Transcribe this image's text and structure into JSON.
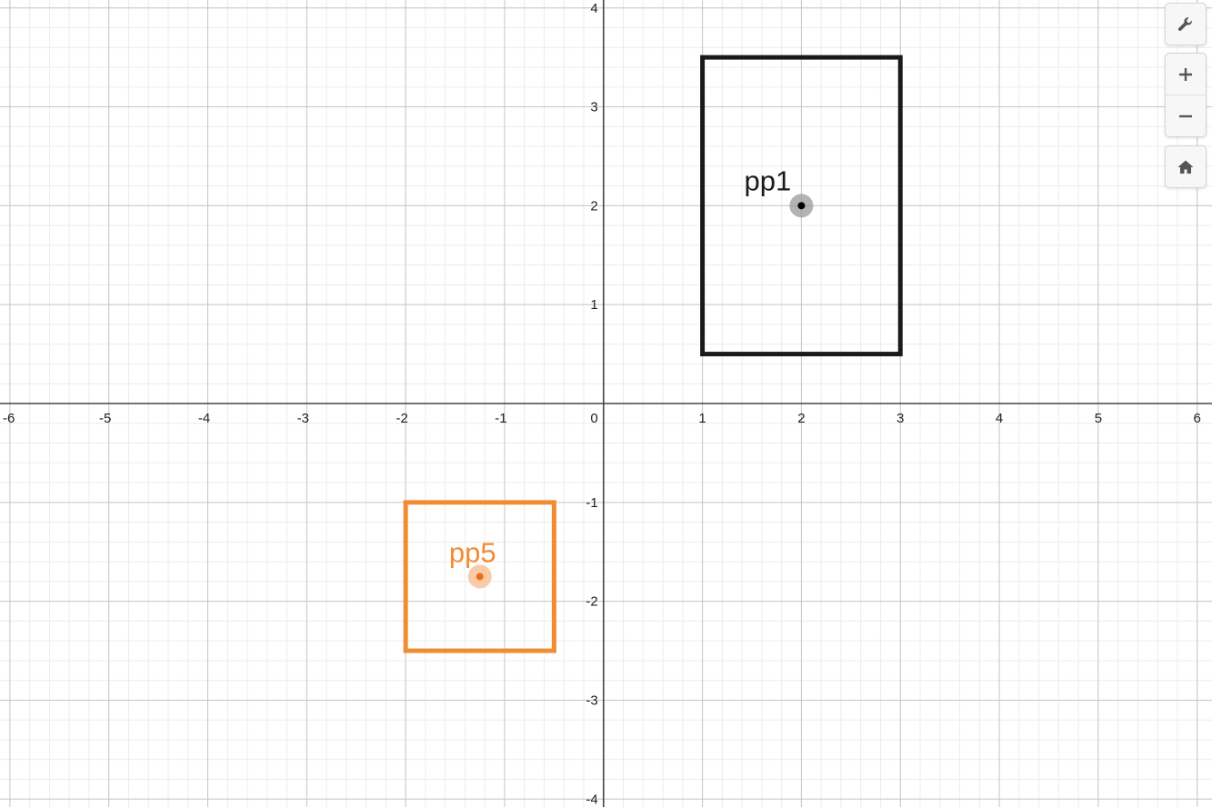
{
  "graph": {
    "x_range": [
      -6.1,
      6.15
    ],
    "y_range": [
      -4.08,
      4.08
    ],
    "major_step": 1,
    "minor_step": 0.2,
    "x_ticks": [
      -6,
      -5,
      -4,
      -3,
      -2,
      -1,
      0,
      1,
      2,
      3,
      4,
      5,
      6
    ],
    "y_ticks": [
      -4,
      -3,
      -2,
      -1,
      1,
      2,
      3,
      4
    ],
    "origin_label": "0"
  },
  "shapes": [
    {
      "name": "pp1",
      "label": "pp1",
      "color": "#1a1a1a",
      "point_color": "#000000",
      "halo_color": "#9a9a9a",
      "rect": {
        "x1": 1,
        "x2": 3,
        "y1": 0.5,
        "y2": 3.5
      },
      "point": {
        "x": 2,
        "y": 2
      }
    },
    {
      "name": "pp5",
      "label": "pp5",
      "color": "#f28c33",
      "point_color": "#f26b1d",
      "halo_color": "#f7b98a",
      "rect": {
        "x1": -2,
        "x2": -0.5,
        "y1": -2.5,
        "y2": -1
      },
      "point": {
        "x": -1.25,
        "y": -1.75
      }
    }
  ],
  "toolbar": {
    "settings_icon": "wrench-icon",
    "zoom_in_icon": "plus-icon",
    "zoom_out_icon": "minus-icon",
    "home_icon": "home-icon"
  }
}
